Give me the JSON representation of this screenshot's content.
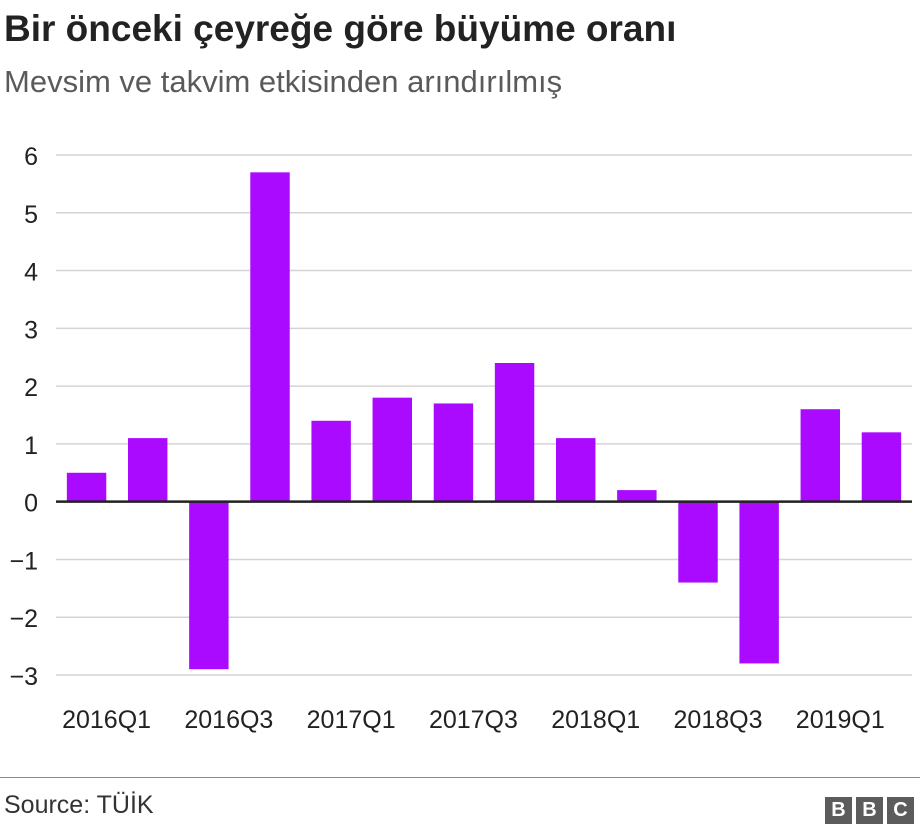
{
  "header": {
    "title": "Bir önceki çeyreğe göre büyüme oranı",
    "subtitle": "Mevsim ve takvim etkisinden arındırılmış"
  },
  "footer": {
    "source": "Source: TÜİK",
    "logo_letters": [
      "B",
      "B",
      "C"
    ]
  },
  "colors": {
    "bar": "#aa0aff",
    "grid": "#d4d4d4",
    "zero_line": "#222222",
    "text": "#222222"
  },
  "chart_data": {
    "type": "bar",
    "title": "Bir önceki çeyreğe göre büyüme oranı",
    "subtitle": "Mevsim ve takvim etkisinden arındırılmış",
    "xlabel": "",
    "ylabel": "",
    "categories": [
      "2016Q1",
      "2016Q2",
      "2016Q3",
      "2016Q4",
      "2017Q1",
      "2017Q2",
      "2017Q3",
      "2017Q4",
      "2018Q1",
      "2018Q2",
      "2018Q3",
      "2018Q4",
      "2019Q1",
      "2019Q2"
    ],
    "x_tick_labels": [
      "2016Q1",
      "2016Q3",
      "2017Q1",
      "2017Q3",
      "2018Q1",
      "2018Q3",
      "2019Q1"
    ],
    "values": [
      0.5,
      1.1,
      -2.9,
      5.7,
      1.4,
      1.8,
      1.7,
      2.4,
      1.1,
      0.2,
      -1.4,
      -2.8,
      1.6,
      1.2
    ],
    "ylim": [
      -3,
      6
    ],
    "y_ticks": [
      -3,
      -2,
      -1,
      0,
      1,
      2,
      3,
      4,
      5,
      6
    ],
    "y_tick_labels": [
      "−3",
      "−2",
      "−1",
      "0",
      "1",
      "2",
      "3",
      "4",
      "5",
      "6"
    ],
    "grid": true,
    "legend": "none"
  }
}
